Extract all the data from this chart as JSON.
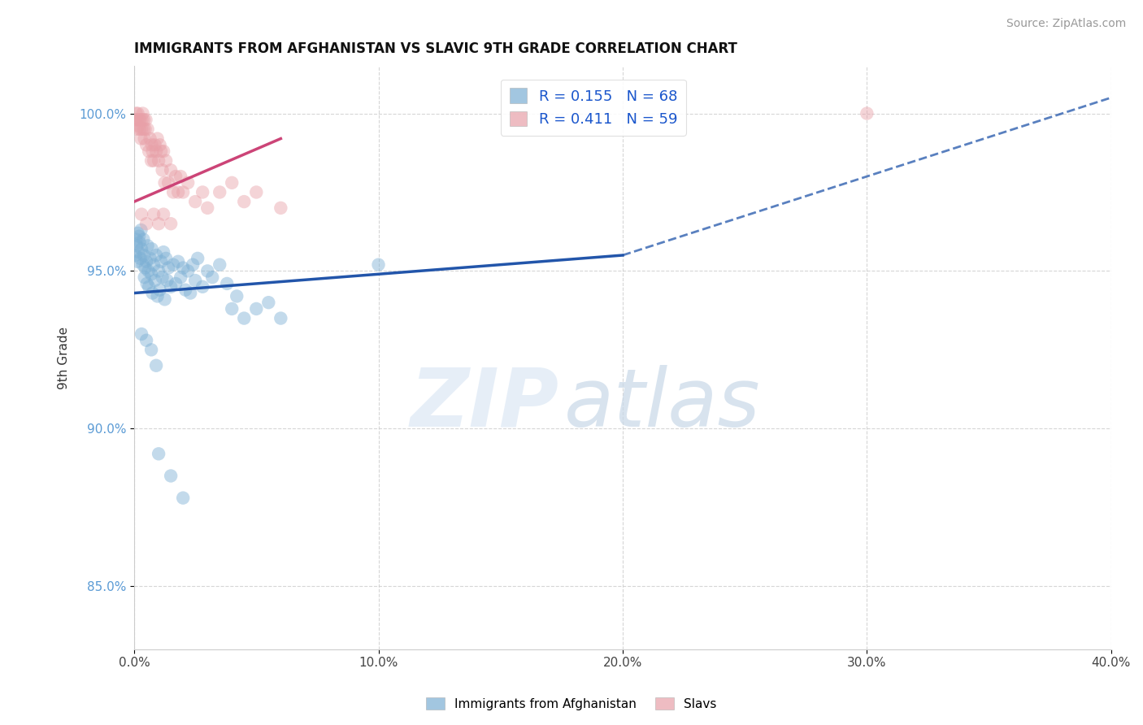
{
  "title": "IMMIGRANTS FROM AFGHANISTAN VS SLAVIC 9TH GRADE CORRELATION CHART",
  "source": "Source: ZipAtlas.com",
  "ylabel": "9th Grade",
  "xlim": [
    0.0,
    40.0
  ],
  "ylim": [
    83.0,
    101.5
  ],
  "yticks": [
    85.0,
    90.0,
    95.0,
    100.0
  ],
  "ytick_labels": [
    "85.0%",
    "90.0%",
    "95.0%",
    "100.0%"
  ],
  "xticks": [
    0.0,
    10.0,
    20.0,
    30.0,
    40.0
  ],
  "xtick_labels": [
    "0.0%",
    "10.0%",
    "20.0%",
    "30.0%",
    "40.0%"
  ],
  "blue_R": 0.155,
  "blue_N": 68,
  "pink_R": 0.411,
  "pink_N": 59,
  "blue_color": "#7bafd4",
  "pink_color": "#e8a0a8",
  "blue_line_color": "#2255aa",
  "pink_line_color": "#cc4477",
  "blue_line_y0": 94.3,
  "blue_line_y1": 95.5,
  "blue_line_x0": 0.0,
  "blue_line_x1": 20.0,
  "blue_dash_x0": 20.0,
  "blue_dash_x1": 40.0,
  "blue_dash_y0": 95.5,
  "blue_dash_y1": 100.5,
  "pink_line_y0": 97.2,
  "pink_line_y1": 99.2,
  "pink_line_x0": 0.0,
  "pink_line_x1": 6.0,
  "blue_scatter": [
    [
      0.05,
      95.5
    ],
    [
      0.08,
      96.0
    ],
    [
      0.1,
      95.8
    ],
    [
      0.12,
      95.3
    ],
    [
      0.15,
      96.2
    ],
    [
      0.18,
      95.6
    ],
    [
      0.2,
      96.1
    ],
    [
      0.22,
      95.9
    ],
    [
      0.25,
      95.4
    ],
    [
      0.28,
      96.3
    ],
    [
      0.3,
      95.7
    ],
    [
      0.35,
      95.2
    ],
    [
      0.38,
      96.0
    ],
    [
      0.4,
      95.5
    ],
    [
      0.42,
      94.8
    ],
    [
      0.45,
      95.1
    ],
    [
      0.5,
      95.3
    ],
    [
      0.52,
      94.6
    ],
    [
      0.55,
      95.8
    ],
    [
      0.58,
      95.0
    ],
    [
      0.6,
      94.5
    ],
    [
      0.65,
      95.4
    ],
    [
      0.7,
      94.9
    ],
    [
      0.72,
      95.7
    ],
    [
      0.75,
      94.3
    ],
    [
      0.8,
      95.2
    ],
    [
      0.85,
      94.7
    ],
    [
      0.9,
      95.5
    ],
    [
      0.95,
      94.2
    ],
    [
      1.0,
      95.0
    ],
    [
      1.05,
      94.4
    ],
    [
      1.1,
      95.3
    ],
    [
      1.15,
      94.8
    ],
    [
      1.2,
      95.6
    ],
    [
      1.25,
      94.1
    ],
    [
      1.3,
      95.4
    ],
    [
      1.35,
      94.7
    ],
    [
      1.4,
      95.1
    ],
    [
      1.5,
      94.5
    ],
    [
      1.6,
      95.2
    ],
    [
      1.7,
      94.6
    ],
    [
      1.8,
      95.3
    ],
    [
      1.9,
      94.8
    ],
    [
      2.0,
      95.1
    ],
    [
      2.1,
      94.4
    ],
    [
      2.2,
      95.0
    ],
    [
      2.3,
      94.3
    ],
    [
      2.4,
      95.2
    ],
    [
      2.5,
      94.7
    ],
    [
      2.6,
      95.4
    ],
    [
      2.8,
      94.5
    ],
    [
      3.0,
      95.0
    ],
    [
      3.2,
      94.8
    ],
    [
      3.5,
      95.2
    ],
    [
      3.8,
      94.6
    ],
    [
      4.0,
      93.8
    ],
    [
      4.2,
      94.2
    ],
    [
      4.5,
      93.5
    ],
    [
      5.0,
      93.8
    ],
    [
      5.5,
      94.0
    ],
    [
      6.0,
      93.5
    ],
    [
      0.3,
      93.0
    ],
    [
      0.5,
      92.8
    ],
    [
      0.7,
      92.5
    ],
    [
      0.9,
      92.0
    ],
    [
      1.0,
      89.2
    ],
    [
      1.5,
      88.5
    ],
    [
      2.0,
      87.8
    ],
    [
      10.0,
      95.2
    ]
  ],
  "pink_scatter": [
    [
      0.05,
      99.8
    ],
    [
      0.08,
      100.0
    ],
    [
      0.1,
      99.5
    ],
    [
      0.12,
      99.8
    ],
    [
      0.15,
      100.0
    ],
    [
      0.18,
      99.6
    ],
    [
      0.2,
      99.8
    ],
    [
      0.22,
      99.5
    ],
    [
      0.25,
      99.8
    ],
    [
      0.28,
      99.2
    ],
    [
      0.3,
      99.5
    ],
    [
      0.32,
      99.8
    ],
    [
      0.35,
      100.0
    ],
    [
      0.38,
      99.5
    ],
    [
      0.4,
      99.8
    ],
    [
      0.42,
      99.2
    ],
    [
      0.45,
      99.5
    ],
    [
      0.48,
      99.8
    ],
    [
      0.5,
      99.0
    ],
    [
      0.55,
      99.5
    ],
    [
      0.6,
      98.8
    ],
    [
      0.65,
      99.2
    ],
    [
      0.7,
      98.5
    ],
    [
      0.72,
      99.0
    ],
    [
      0.75,
      98.8
    ],
    [
      0.8,
      98.5
    ],
    [
      0.85,
      99.0
    ],
    [
      0.9,
      98.8
    ],
    [
      0.95,
      99.2
    ],
    [
      1.0,
      98.5
    ],
    [
      1.05,
      99.0
    ],
    [
      1.1,
      98.8
    ],
    [
      1.15,
      98.2
    ],
    [
      1.2,
      98.8
    ],
    [
      1.25,
      97.8
    ],
    [
      1.3,
      98.5
    ],
    [
      1.4,
      97.8
    ],
    [
      1.5,
      98.2
    ],
    [
      1.6,
      97.5
    ],
    [
      1.7,
      98.0
    ],
    [
      1.8,
      97.5
    ],
    [
      1.9,
      98.0
    ],
    [
      2.0,
      97.5
    ],
    [
      2.2,
      97.8
    ],
    [
      2.5,
      97.2
    ],
    [
      2.8,
      97.5
    ],
    [
      3.0,
      97.0
    ],
    [
      3.5,
      97.5
    ],
    [
      4.0,
      97.8
    ],
    [
      4.5,
      97.2
    ],
    [
      5.0,
      97.5
    ],
    [
      6.0,
      97.0
    ],
    [
      0.3,
      96.8
    ],
    [
      0.5,
      96.5
    ],
    [
      0.8,
      96.8
    ],
    [
      1.0,
      96.5
    ],
    [
      1.2,
      96.8
    ],
    [
      1.5,
      96.5
    ],
    [
      30.0,
      100.0
    ]
  ],
  "watermark_zip": "ZIP",
  "watermark_atlas": "atlas",
  "background_color": "#ffffff",
  "grid_color": "#cccccc"
}
